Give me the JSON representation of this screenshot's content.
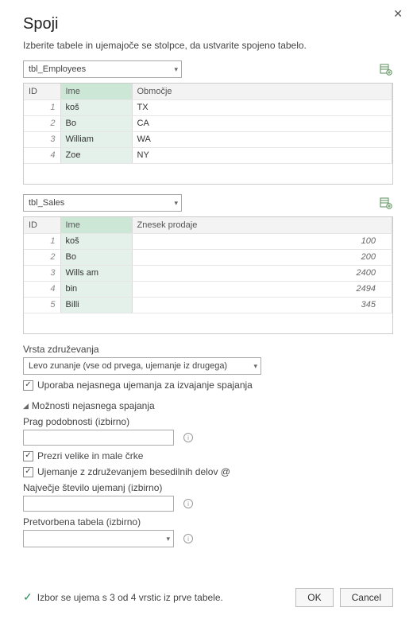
{
  "dialog": {
    "title": "Spoji",
    "subtitle": "Izberite tabele in ujemajoče se stolpce, da ustvarite spojeno tabelo."
  },
  "source1": {
    "selected": "tbl_Employees",
    "columns": {
      "id": "ID",
      "name": "Ime",
      "region": "Območje"
    },
    "rows": [
      {
        "id": "1",
        "name": "koš",
        "region": "TX"
      },
      {
        "id": "2",
        "name": "Bo",
        "region": "CA"
      },
      {
        "id": "3",
        "name": "William",
        "region": "WA"
      },
      {
        "id": "4",
        "name": "Zoe",
        "region": "NY"
      }
    ]
  },
  "source2": {
    "selected": "tbl_Sales",
    "columns": {
      "id": "ID",
      "name": "Ime",
      "amount": "Znesek prodaje"
    },
    "rows": [
      {
        "id": "1",
        "name": "koš",
        "amount": "100"
      },
      {
        "id": "2",
        "name": "Bo",
        "amount": "200"
      },
      {
        "id": "3",
        "name": "Wills am",
        "amount": "2400"
      },
      {
        "id": "4",
        "name": "bin",
        "amount": "2494"
      },
      {
        "id": "5",
        "name": "Billi",
        "amount": "345"
      }
    ]
  },
  "joinKind": {
    "label": "Vrsta združevanja",
    "selected": "Levo zunanje (vse od prvega, ujemanje iz drugega)"
  },
  "fuzzy": {
    "useLabel": "Uporaba nejasnega ujemanja za izvajanje spajanja",
    "optionsHeader": "Možnosti nejasnega spajanja",
    "thresholdLabel": "Prag podobnosti (izbirno)",
    "ignoreCaseLabel": "Prezri velike in male črke",
    "combinePartsLabel": "Ujemanje z združevanjem besedilnih delov @",
    "maxMatchesLabel": "Največje število ujemanj (izbirno)",
    "transformTableLabel": "Pretvorbena tabela (izbirno)"
  },
  "status": "Izbor se ujema s 3 od 4 vrstic iz prve tabele.",
  "buttons": {
    "ok": "OK",
    "cancel": "Cancel"
  },
  "colors": {
    "selectedHeader": "#cde7d7",
    "selectedCell": "#e4f1ea",
    "border": "#cccccc",
    "accent": "#2e8b57"
  }
}
